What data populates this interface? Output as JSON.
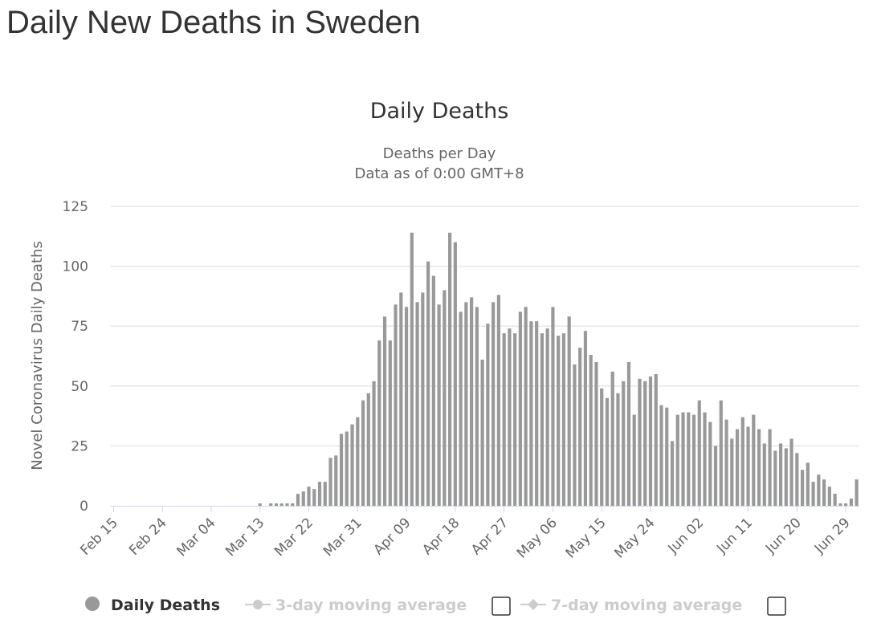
{
  "page": {
    "title": "Daily New Deaths in Sweden"
  },
  "chart_data": {
    "type": "bar",
    "title": "Daily Deaths",
    "subtitle_line1": "Deaths per Day",
    "subtitle_line2": "Data as of 0:00 GMT+8",
    "ylabel": "Novel Coronavirus Daily Deaths",
    "xlabel": "",
    "ylim": [
      0,
      125
    ],
    "yticks": [
      0,
      25,
      50,
      75,
      100,
      125
    ],
    "start_date": "Feb 15",
    "xtick_labels": [
      "Feb 15",
      "Feb 24",
      "Mar 04",
      "Mar 13",
      "Mar 22",
      "Mar 31",
      "Apr 09",
      "Apr 18",
      "Apr 27",
      "May 06",
      "May 15",
      "May 24",
      "Jun 02",
      "Jun 11",
      "Jun 20",
      "Jun 29"
    ],
    "xtick_step_days": 9,
    "bar_color": "#999999",
    "series": [
      {
        "name": "Daily Deaths",
        "values": [
          0,
          0,
          0,
          0,
          0,
          0,
          0,
          0,
          0,
          0,
          0,
          0,
          0,
          0,
          0,
          0,
          0,
          0,
          0,
          0,
          0,
          0,
          0,
          0,
          0,
          0,
          0,
          1,
          0,
          1,
          1,
          1,
          1,
          1,
          5,
          6,
          8,
          7,
          10,
          10,
          20,
          21,
          30,
          31,
          34,
          37,
          44,
          47,
          52,
          69,
          79,
          69,
          84,
          89,
          83,
          114,
          85,
          89,
          102,
          96,
          84,
          90,
          114,
          110,
          81,
          85,
          87,
          83,
          61,
          76,
          85,
          88,
          72,
          74,
          72,
          81,
          83,
          77,
          77,
          72,
          74,
          83,
          71,
          72,
          79,
          59,
          66,
          73,
          63,
          60,
          49,
          45,
          56,
          47,
          52,
          60,
          38,
          53,
          52,
          54,
          55,
          42,
          41,
          27,
          38,
          39,
          39,
          38,
          44,
          39,
          35,
          25,
          44,
          36,
          28,
          32,
          37,
          33,
          38,
          32,
          26,
          32,
          23,
          26,
          24,
          28,
          22,
          15,
          18,
          10,
          13,
          11,
          8,
          5,
          1,
          1,
          3,
          11
        ]
      },
      {
        "name": "3-day moving average",
        "values": []
      },
      {
        "name": "7-day moving average",
        "values": []
      }
    ],
    "legend": [
      {
        "label": "Daily Deaths",
        "active": true
      },
      {
        "label": "3-day moving average",
        "active": false
      },
      {
        "label": "7-day moving average",
        "active": false
      }
    ],
    "grid": true,
    "legend_position": "bottom-center"
  }
}
